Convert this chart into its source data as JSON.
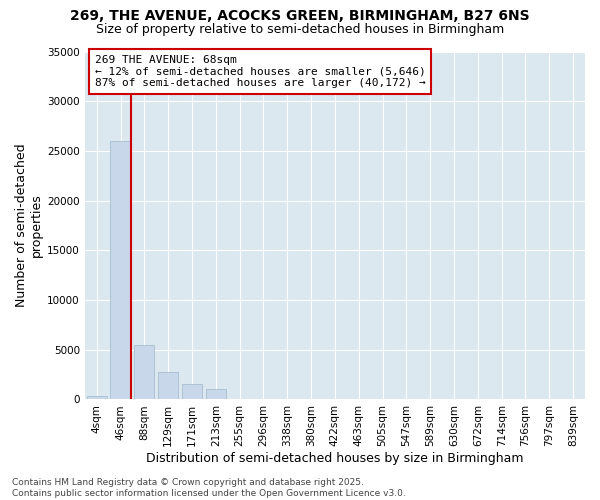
{
  "title_line1": "269, THE AVENUE, ACOCKS GREEN, BIRMINGHAM, B27 6NS",
  "title_line2": "Size of property relative to semi-detached houses in Birmingham",
  "xlabel": "Distribution of semi-detached houses by size in Birmingham",
  "ylabel": "Number of semi-detached\nproperties",
  "categories": [
    "4sqm",
    "46sqm",
    "88sqm",
    "129sqm",
    "171sqm",
    "213sqm",
    "255sqm",
    "296sqm",
    "338sqm",
    "380sqm",
    "422sqm",
    "463sqm",
    "505sqm",
    "547sqm",
    "589sqm",
    "630sqm",
    "672sqm",
    "714sqm",
    "756sqm",
    "797sqm",
    "839sqm"
  ],
  "values": [
    300,
    26000,
    5500,
    2800,
    1600,
    1100,
    0,
    0,
    0,
    0,
    0,
    0,
    0,
    0,
    0,
    0,
    0,
    0,
    0,
    0,
    0
  ],
  "bar_color": "#c8d8ea",
  "bar_edge_color": "#a0b8cc",
  "vline_x": 1.42,
  "vline_color": "#cc0000",
  "annotation_line1": "269 THE AVENUE: 68sqm",
  "annotation_line2": "← 12% of semi-detached houses are smaller (5,646)",
  "annotation_line3": "87% of semi-detached houses are larger (40,172) →",
  "annotation_box_color": "white",
  "annotation_box_edge": "#cc0000",
  "ylim": [
    0,
    35000
  ],
  "yticks": [
    0,
    5000,
    10000,
    15000,
    20000,
    25000,
    30000,
    35000
  ],
  "background_color": "#dce8f0",
  "footer_text": "Contains HM Land Registry data © Crown copyright and database right 2025.\nContains public sector information licensed under the Open Government Licence v3.0.",
  "title_fontsize": 10,
  "subtitle_fontsize": 9,
  "axis_label_fontsize": 9,
  "tick_fontsize": 7.5,
  "annotation_fontsize": 8,
  "footer_fontsize": 6.5
}
